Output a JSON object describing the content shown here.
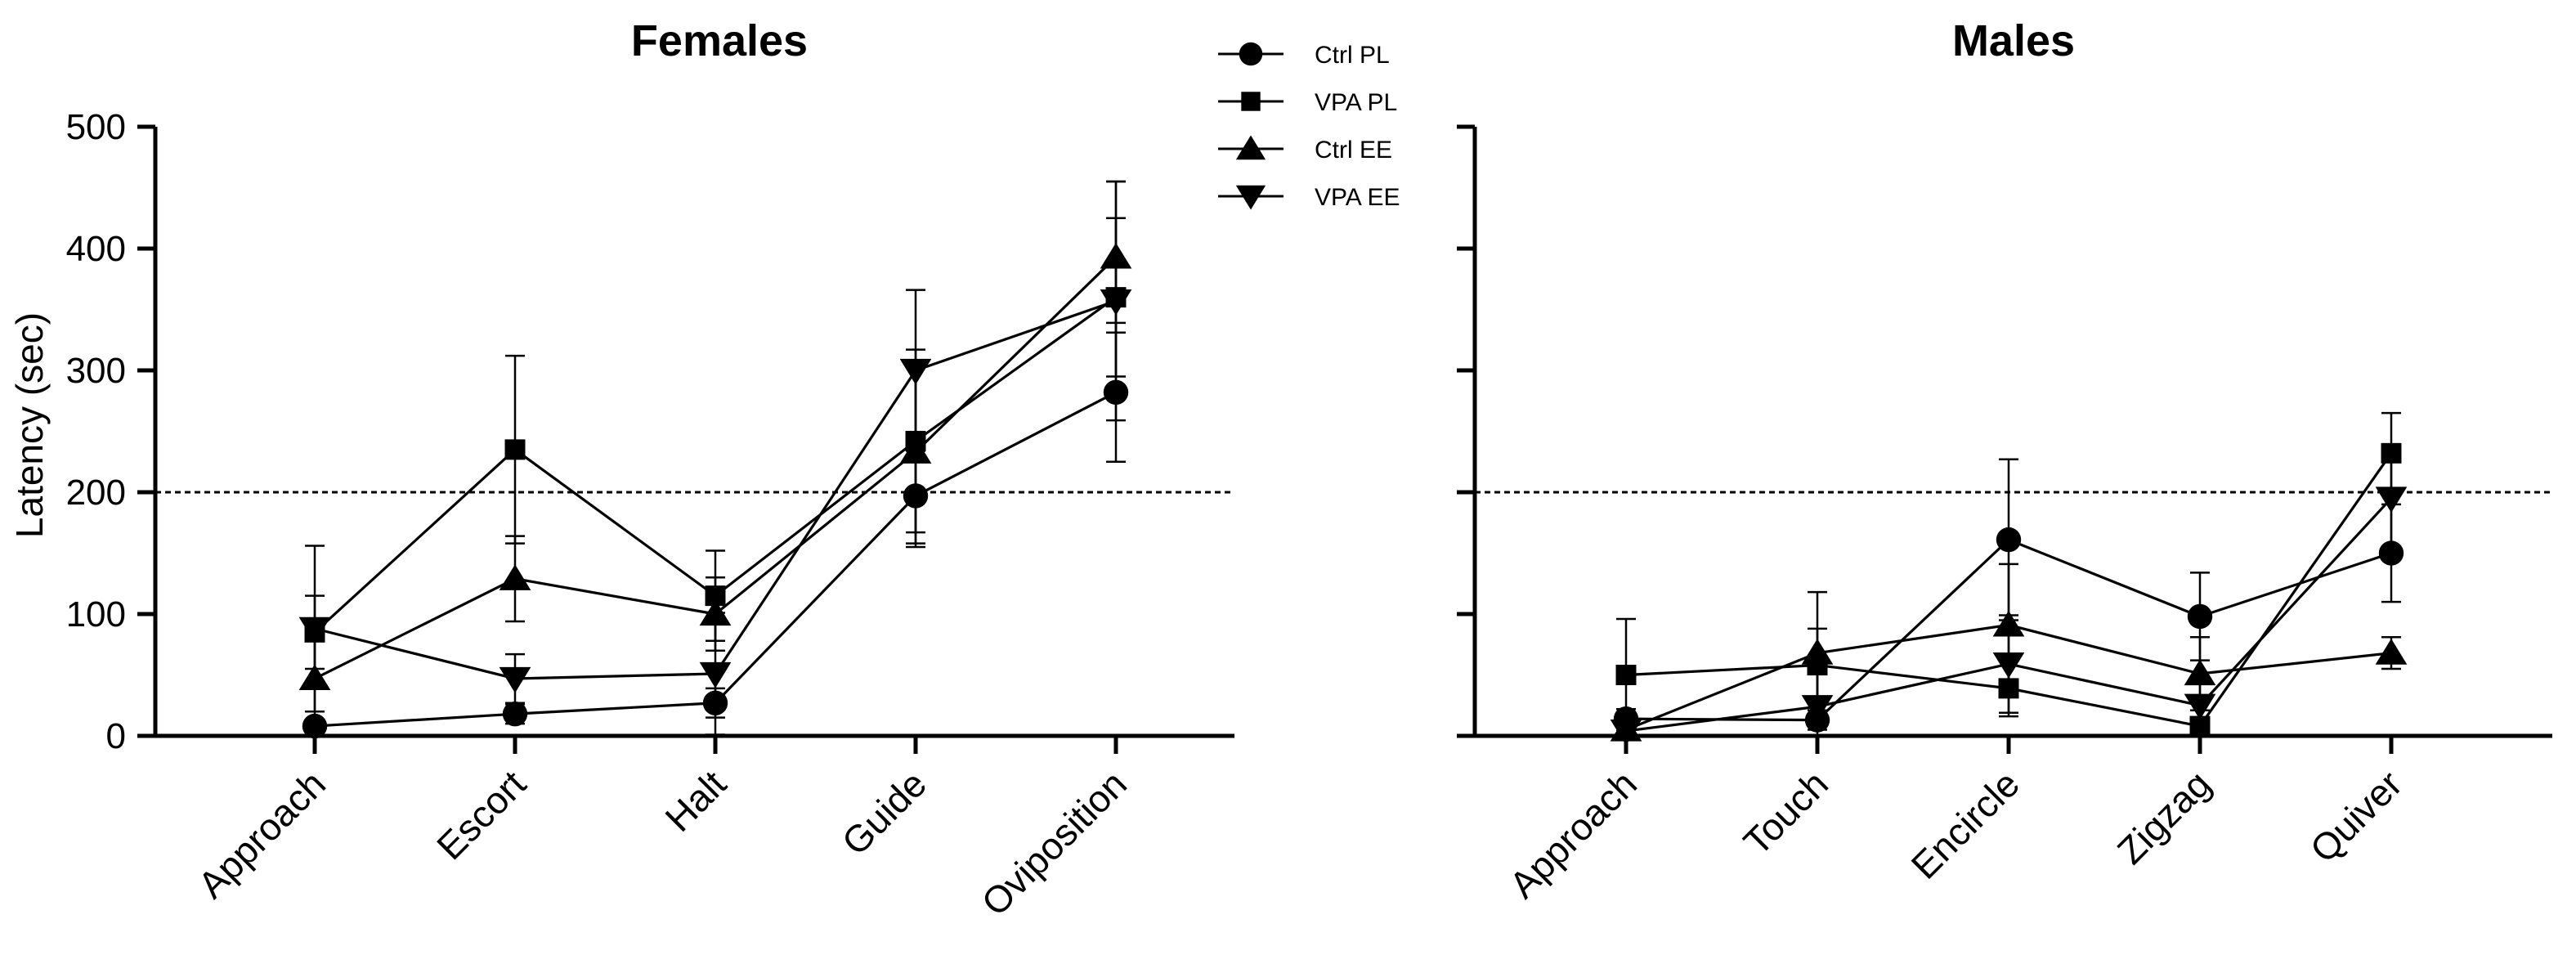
{
  "chart_data": [
    {
      "type": "line",
      "title": "Females",
      "xlabel": "",
      "ylabel": "Latency (sec)",
      "ylim": [
        0,
        500
      ],
      "yticks": [
        "0",
        "100",
        "200",
        "300",
        "400",
        "500"
      ],
      "reference_line": 200,
      "categories": [
        "Approach",
        "Escort",
        "Halt",
        "Guide",
        "Oviposition"
      ],
      "series": [
        {
          "name": "Ctrl PL",
          "marker": "circle",
          "values": [
            8,
            18,
            27,
            197,
            282
          ],
          "errors": [
            5,
            8,
            12,
            42,
            57
          ]
        },
        {
          "name": "VPA PL",
          "marker": "square",
          "values": [
            85,
            235,
            115,
            242,
            360
          ],
          "errors": [
            30,
            77,
            37,
            75,
            65
          ]
        },
        {
          "name": "Ctrl EE",
          "marker": "triangle-up",
          "values": [
            47,
            129,
            100,
            233,
            393
          ],
          "errors": [
            36,
            35,
            30,
            75,
            62
          ]
        },
        {
          "name": "VPA EE",
          "marker": "triangle-down",
          "values": [
            88,
            47,
            51,
            300,
            357
          ],
          "errors": [
            68,
            20,
            50,
            66,
            98
          ]
        }
      ]
    },
    {
      "type": "line",
      "title": "Males",
      "xlabel": "",
      "ylabel": "",
      "ylim": [
        0,
        500
      ],
      "reference_line": 200,
      "categories": [
        "Approach",
        "Touch",
        "Encircle",
        "Zigzag",
        "Quiver"
      ],
      "series": [
        {
          "name": "Ctrl PL",
          "marker": "circle",
          "values": [
            14,
            13,
            161,
            98,
            150
          ],
          "errors": [
            8,
            8,
            66,
            36,
            40
          ]
        },
        {
          "name": "VPA PL",
          "marker": "square",
          "values": [
            50,
            58,
            39,
            8,
            232
          ],
          "errors": [
            46,
            30,
            23,
            5,
            33
          ]
        },
        {
          "name": "Ctrl EE",
          "marker": "triangle-up",
          "values": [
            5,
            68,
            91,
            51,
            68
          ],
          "errors": [
            4,
            50,
            50,
            30,
            13
          ]
        },
        {
          "name": "VPA EE",
          "marker": "triangle-down",
          "values": [
            4,
            24,
            59,
            25,
            195
          ],
          "errors": [
            3,
            40,
            40,
            20,
            40
          ]
        }
      ]
    }
  ],
  "legend": [
    {
      "label": "Ctrl PL",
      "marker": "circle"
    },
    {
      "label": "VPA PL",
      "marker": "square"
    },
    {
      "label": "Ctrl EE",
      "marker": "triangle-up"
    },
    {
      "label": "VPA EE",
      "marker": "triangle-down"
    }
  ]
}
